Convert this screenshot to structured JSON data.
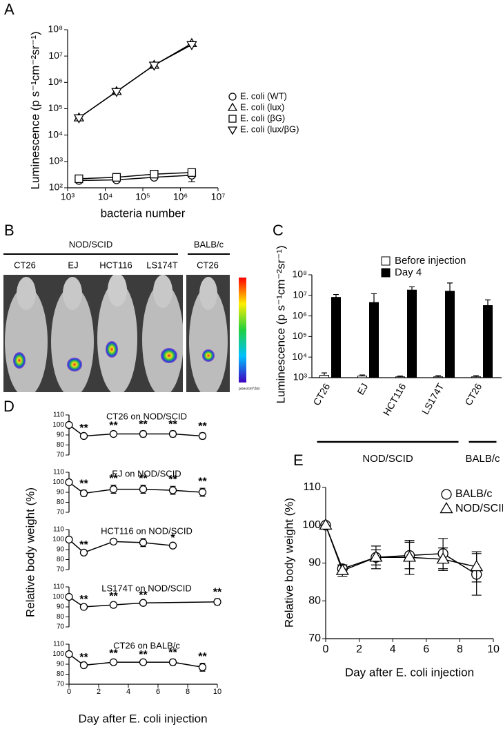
{
  "chart_data": [
    {
      "type": "line",
      "panel_label": "A",
      "log_x": true,
      "log_y": true,
      "xlabel": "bacteria number",
      "ylabel": "Luminescence (p s⁻¹cm⁻²sr⁻¹)",
      "x": [
        2000,
        20000,
        200000,
        2000000
      ],
      "xlim": [
        1000,
        10000000
      ],
      "xticks": [
        {
          "value": 1000,
          "label": "10³"
        },
        {
          "value": 10000,
          "label": "10⁴"
        },
        {
          "value": 100000,
          "label": "10⁵"
        },
        {
          "value": 1000000,
          "label": "10⁶"
        },
        {
          "value": 10000000,
          "label": "10⁷"
        }
      ],
      "ylim": [
        100,
        100000000
      ],
      "yticks": [
        {
          "value": 100,
          "label": "10²"
        },
        {
          "value": 1000,
          "label": "10³"
        },
        {
          "value": 10000,
          "label": "10⁴"
        },
        {
          "value": 100000,
          "label": "10⁵"
        },
        {
          "value": 1000000,
          "label": "10⁶"
        },
        {
          "value": 10000000,
          "label": "10⁷"
        },
        {
          "value": 100000000,
          "label": "10⁸"
        }
      ],
      "legend": "right",
      "series": [
        {
          "name": "E. coli (WT)",
          "marker": "circle",
          "color": "#ffffff",
          "values": [
            190,
            200,
            250,
            300
          ],
          "errors": [
            10,
            10,
            20,
            130
          ]
        },
        {
          "name": "E. coli (lux)",
          "marker": "triangle",
          "color": "#ffffff",
          "values": [
            45000,
            450000,
            4500000,
            30000000
          ]
        },
        {
          "name": "E. coli (βG)",
          "marker": "square",
          "color": "#ffffff",
          "values": [
            220,
            250,
            330,
            380
          ]
        },
        {
          "name": "E. coli (lux/βG)",
          "marker": "triangle-down",
          "color": "#ffffff",
          "values": [
            45000,
            450000,
            4500000,
            27000000
          ]
        }
      ]
    },
    {
      "type": "image",
      "panel_label": "B",
      "groups": [
        {
          "label": "NOD/SCID",
          "categories": [
            "CT26",
            "EJ",
            "HCT116",
            "LS174T"
          ]
        },
        {
          "label": "BALB/c",
          "categories": [
            "CT26"
          ]
        }
      ],
      "colorbar_label": "p/sec/cm^2/sr"
    },
    {
      "type": "bar",
      "panel_label": "C",
      "log_y": true,
      "ylabel": "Luminescence (p s⁻¹cm⁻²sr⁻¹)",
      "groups": [
        {
          "label": "NOD/SCID",
          "categories": [
            "CT26",
            "EJ",
            "HCT116",
            "LS174T"
          ]
        },
        {
          "label": "BALB/c",
          "categories": [
            "CT26"
          ]
        }
      ],
      "ylim": [
        1000,
        100000000
      ],
      "yticks": [
        {
          "value": 1000,
          "label": "10³"
        },
        {
          "value": 10000,
          "label": "10⁴"
        },
        {
          "value": 100000,
          "label": "10⁵"
        },
        {
          "value": 1000000,
          "label": "10⁶"
        },
        {
          "value": 10000000,
          "label": "10⁷"
        },
        {
          "value": 100000000,
          "label": "10⁸"
        }
      ],
      "legend": "upper right",
      "series": [
        {
          "name": "Before injection",
          "color": "#ffffff",
          "values": [
            1300,
            1200,
            1100,
            1100,
            1100
          ],
          "errors": [
            400,
            150,
            100,
            150,
            150
          ]
        },
        {
          "name": "Day 4",
          "color": "#000000",
          "values": [
            8000000,
            4500000,
            18000000,
            16000000,
            3200000
          ],
          "errors": [
            3000000,
            7500000,
            8000000,
            24000000,
            2800000
          ]
        }
      ]
    },
    {
      "type": "line",
      "panel_label": "D",
      "xlabel": "Day after E. coli injection",
      "ylabel": "Relative body weight (%)",
      "xlim": [
        0,
        10
      ],
      "xticks": [
        0,
        2,
        4,
        6,
        8,
        10
      ],
      "ylim": [
        70,
        110
      ],
      "yticks": [
        70,
        80,
        90,
        100,
        110
      ],
      "panels": [
        {
          "title": "CT26 on NOD/SCID",
          "x": [
            0,
            1,
            3,
            5,
            7,
            9
          ],
          "values": [
            100,
            89,
            91,
            91,
            91,
            89
          ],
          "errors": [
            0,
            1,
            1.5,
            3,
            3,
            3
          ],
          "point_labels": [
            null,
            "**",
            "**",
            "**",
            "**",
            "**"
          ]
        },
        {
          "title": "EJ on NOD/SCID",
          "x": [
            0,
            1,
            3,
            5,
            7,
            9
          ],
          "values": [
            100,
            89,
            93,
            93,
            92,
            90
          ],
          "errors": [
            0,
            3,
            4,
            4,
            4,
            4
          ],
          "point_labels": [
            null,
            "**",
            "**",
            "**",
            "**",
            "**"
          ]
        },
        {
          "title": "HCT116 on NOD/SCID",
          "x": [
            0,
            1,
            3,
            5,
            7
          ],
          "values": [
            100,
            87,
            98,
            97,
            94
          ],
          "errors": [
            0,
            1,
            1,
            4,
            1
          ],
          "point_labels": [
            null,
            "**",
            null,
            null,
            "*"
          ]
        },
        {
          "title": "LS174T on NOD/SCID",
          "x": [
            0,
            1,
            3,
            5,
            10
          ],
          "values": [
            100,
            90,
            92,
            94,
            95
          ],
          "errors": [
            0,
            1,
            2,
            1,
            3
          ],
          "point_labels": [
            null,
            "**",
            "**",
            "**",
            "**"
          ]
        },
        {
          "title": "CT26 on BALB/c",
          "x": [
            0,
            1,
            3,
            5,
            7,
            9
          ],
          "values": [
            100,
            89,
            92,
            92,
            92,
            87
          ],
          "errors": [
            0,
            1,
            2,
            1,
            3,
            4
          ],
          "point_labels": [
            null,
            "**",
            "**",
            "**",
            "**",
            "**"
          ]
        }
      ]
    },
    {
      "type": "line",
      "panel_label": "E",
      "xlabel": "Day after E. coli injection",
      "ylabel": "Relative body weight (%)",
      "x": [
        0,
        1,
        3,
        5,
        7,
        9
      ],
      "xlim": [
        0,
        10
      ],
      "xticks": [
        0,
        2,
        4,
        6,
        8,
        10
      ],
      "ylim": [
        70,
        110
      ],
      "yticks": [
        70,
        80,
        90,
        100,
        110
      ],
      "legend": "upper right",
      "series": [
        {
          "name": "BALB/c",
          "marker": "circle",
          "color": "#ffffff",
          "values": [
            100,
            88.5,
            91.5,
            92,
            92.5,
            87
          ],
          "errors": [
            0,
            1,
            2,
            3.5,
            4,
            5.5
          ]
        },
        {
          "name": "NOD/SCID",
          "marker": "triangle",
          "color": "#ffffff",
          "values": [
            100,
            88,
            91.5,
            91.5,
            91,
            89
          ],
          "errors": [
            0,
            1.5,
            3,
            4.5,
            3,
            4
          ]
        }
      ]
    }
  ]
}
